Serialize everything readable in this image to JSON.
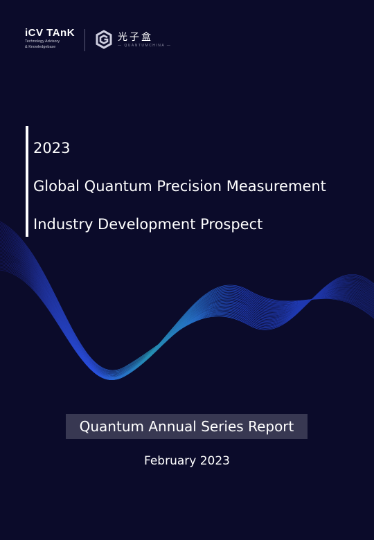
{
  "header": {
    "icv_logo": {
      "name": "iCV TAnK",
      "subtitle_line1": "Technology Advisory",
      "subtitle_line2": "& Knowledgebase"
    },
    "partner_logo": {
      "icon": "g-hexagon-logo-icon",
      "name": "光子盒",
      "subtitle": "— QUANTUMCHINA —"
    }
  },
  "title": {
    "year": "2023",
    "line1": "Global Quantum Precision Measurement",
    "line2": "Industry Development Prospect"
  },
  "series_label": "Quantum Annual Series Report",
  "date": "February 2023",
  "colors": {
    "background": "#0b0b2a",
    "wave_blue": "#2f5bff",
    "wave_cyan": "#2aa7c9",
    "series_box": "#383852",
    "text": "#ffffff"
  }
}
